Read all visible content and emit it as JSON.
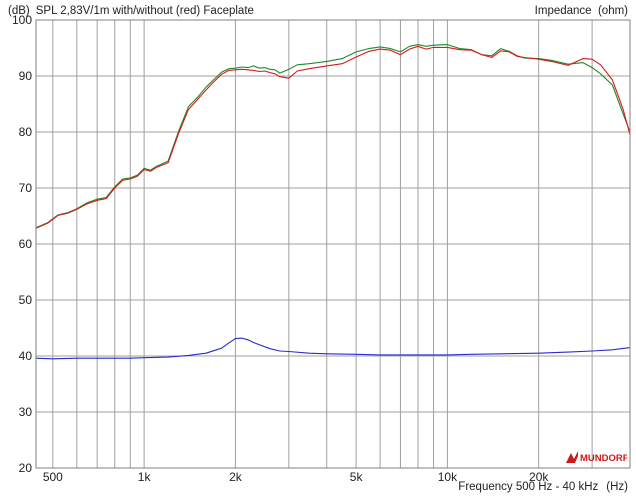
{
  "header": {
    "y_unit": "(dB)",
    "title": "SPL 2,83V/1m with/without (red) Faceplate",
    "right_axis_label": "Impedance",
    "right_axis_unit": "(ohm)"
  },
  "footer": {
    "xlabel": "Frequency 500 Hz - 40 kHz",
    "xunit": "(Hz)"
  },
  "logo": {
    "text": "MUNDORF",
    "color": "#cc1a1a"
  },
  "colors": {
    "green": "#1e8a2e",
    "red": "#d81b1b",
    "blue": "#2a2ad0",
    "grid": "#a0a0a0",
    "frame": "#808080"
  },
  "chart_data": {
    "type": "line",
    "title": "SPL 2,83V/1m with/without (red) Faceplate",
    "xlabel": "Frequency 500 Hz - 40 kHz",
    "ylabel": "(dB)",
    "x_scale": "log",
    "xlim": [
      440,
      40000
    ],
    "ylim": [
      20,
      100
    ],
    "yticks": [
      20,
      30,
      40,
      50,
      60,
      70,
      80,
      90,
      100
    ],
    "xtick_labels": [
      {
        "x": 500,
        "label": "500"
      },
      {
        "x": 1000,
        "label": "1k"
      },
      {
        "x": 2000,
        "label": "2k"
      },
      {
        "x": 5000,
        "label": "5k"
      },
      {
        "x": 10000,
        "label": "10k"
      },
      {
        "x": 20000,
        "label": "20k"
      }
    ],
    "xgrid": [
      500,
      600,
      700,
      800,
      900,
      1000,
      2000,
      3000,
      4000,
      5000,
      6000,
      7000,
      8000,
      9000,
      10000,
      20000,
      30000,
      40000
    ],
    "grid": true,
    "series": [
      {
        "name": "",
        "color": "green",
        "x": [
          440,
          480,
          520,
          560,
          600,
          650,
          700,
          750,
          800,
          850,
          900,
          950,
          1000,
          1050,
          1100,
          1200,
          1300,
          1400,
          1500,
          1600,
          1700,
          1800,
          1900,
          2000,
          2100,
          2200,
          2300,
          2400,
          2500,
          2600,
          2700,
          2800,
          3000,
          3200,
          3500,
          4000,
          4500,
          5000,
          5500,
          6000,
          6500,
          7000,
          7500,
          8000,
          8500,
          9000,
          10000,
          11000,
          12000,
          13000,
          14000,
          15000,
          16000,
          17000,
          18000,
          20000,
          22000,
          25000,
          28000,
          30000,
          32000,
          35000,
          38000,
          40000
        ],
        "y": [
          62.9,
          63.8,
          65.2,
          65.6,
          66.3,
          67.4,
          68.0,
          68.3,
          70.2,
          71.6,
          71.8,
          72.3,
          73.5,
          73.2,
          73.9,
          74.8,
          80.2,
          84.5,
          86.2,
          88.0,
          89.4,
          90.7,
          91.3,
          91.4,
          91.6,
          91.5,
          91.8,
          91.4,
          91.5,
          91.2,
          91.1,
          90.5,
          91.2,
          92.0,
          92.2,
          92.6,
          93.1,
          94.3,
          94.9,
          95.2,
          94.9,
          94.3,
          95.3,
          95.6,
          95.3,
          95.5,
          95.6,
          94.9,
          94.7,
          93.8,
          93.6,
          94.9,
          94.4,
          93.6,
          93.2,
          93.1,
          92.8,
          92.1,
          92.4,
          91.5,
          90.4,
          88.4,
          83.2,
          80.0
        ]
      },
      {
        "name": "",
        "color": "red",
        "x": [
          440,
          480,
          520,
          560,
          600,
          650,
          700,
          750,
          800,
          850,
          900,
          950,
          1000,
          1050,
          1100,
          1200,
          1300,
          1400,
          1500,
          1600,
          1700,
          1800,
          1900,
          2000,
          2100,
          2200,
          2300,
          2400,
          2500,
          2600,
          2700,
          2800,
          3000,
          3200,
          3500,
          4000,
          4500,
          5000,
          5500,
          6000,
          6500,
          7000,
          7500,
          8000,
          8500,
          9000,
          10000,
          11000,
          12000,
          13000,
          14000,
          15000,
          16000,
          17000,
          18000,
          20000,
          22000,
          25000,
          28000,
          30000,
          32000,
          35000,
          38000,
          40000
        ],
        "y": [
          62.8,
          63.7,
          65.1,
          65.5,
          66.2,
          67.2,
          67.8,
          68.1,
          70.0,
          71.4,
          71.6,
          72.1,
          73.3,
          73.0,
          73.7,
          74.5,
          79.8,
          84.0,
          85.8,
          87.5,
          89.0,
          90.3,
          91.0,
          91.1,
          91.2,
          91.1,
          91.0,
          90.8,
          90.9,
          90.6,
          90.4,
          89.9,
          89.6,
          90.9,
          91.3,
          91.8,
          92.2,
          93.4,
          94.4,
          94.8,
          94.6,
          93.8,
          94.8,
          95.3,
          94.8,
          95.1,
          95.1,
          94.7,
          94.6,
          93.8,
          93.3,
          94.5,
          94.3,
          93.5,
          93.3,
          93.0,
          92.6,
          91.9,
          93.1,
          93.0,
          92.0,
          89.3,
          84.0,
          79.5
        ]
      },
      {
        "name": "",
        "color": "blue",
        "x": [
          440,
          500,
          600,
          700,
          800,
          900,
          1000,
          1200,
          1400,
          1600,
          1800,
          1900,
          2000,
          2100,
          2200,
          2300,
          2400,
          2600,
          2800,
          3000,
          3500,
          4000,
          5000,
          6000,
          8000,
          10000,
          12000,
          15000,
          20000,
          25000,
          30000,
          35000,
          40000
        ],
        "y": [
          39.6,
          39.5,
          39.6,
          39.6,
          39.6,
          39.6,
          39.7,
          39.8,
          40.1,
          40.5,
          41.4,
          42.3,
          43.1,
          43.2,
          42.9,
          42.4,
          42.0,
          41.3,
          40.9,
          40.8,
          40.5,
          40.4,
          40.3,
          40.2,
          40.2,
          40.2,
          40.3,
          40.4,
          40.5,
          40.7,
          40.9,
          41.1,
          41.5
        ]
      }
    ]
  }
}
